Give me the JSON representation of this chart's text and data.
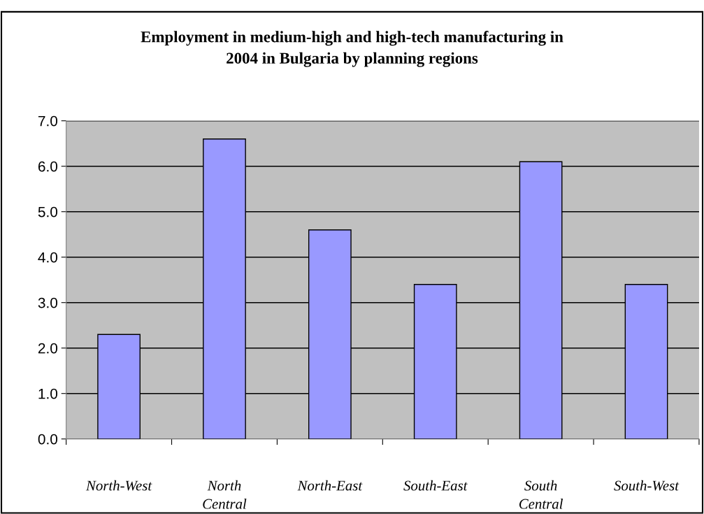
{
  "chart_data": {
    "type": "bar",
    "title": "Employment in medium-high and high-tech manufacturing in\n2004 in Bulgaria by planning regions",
    "categories": [
      "North-West",
      "North Central",
      "North-East",
      "South-East",
      "South Central",
      "South-West"
    ],
    "values": [
      2.3,
      6.6,
      4.6,
      3.4,
      6.1,
      3.4
    ],
    "color": "#9999ff",
    "ylim": [
      0,
      7
    ],
    "yticks": [
      {
        "value": 0,
        "label": "0.0"
      },
      {
        "value": 1,
        "label": "1.0"
      },
      {
        "value": 2,
        "label": "2.0"
      },
      {
        "value": 3,
        "label": "3.0"
      },
      {
        "value": 4,
        "label": "4.0"
      },
      {
        "value": 5,
        "label": "5.0"
      },
      {
        "value": 6,
        "label": "6.0"
      },
      {
        "value": 7,
        "label": "7.0"
      }
    ],
    "grid": "y",
    "legend": false
  }
}
